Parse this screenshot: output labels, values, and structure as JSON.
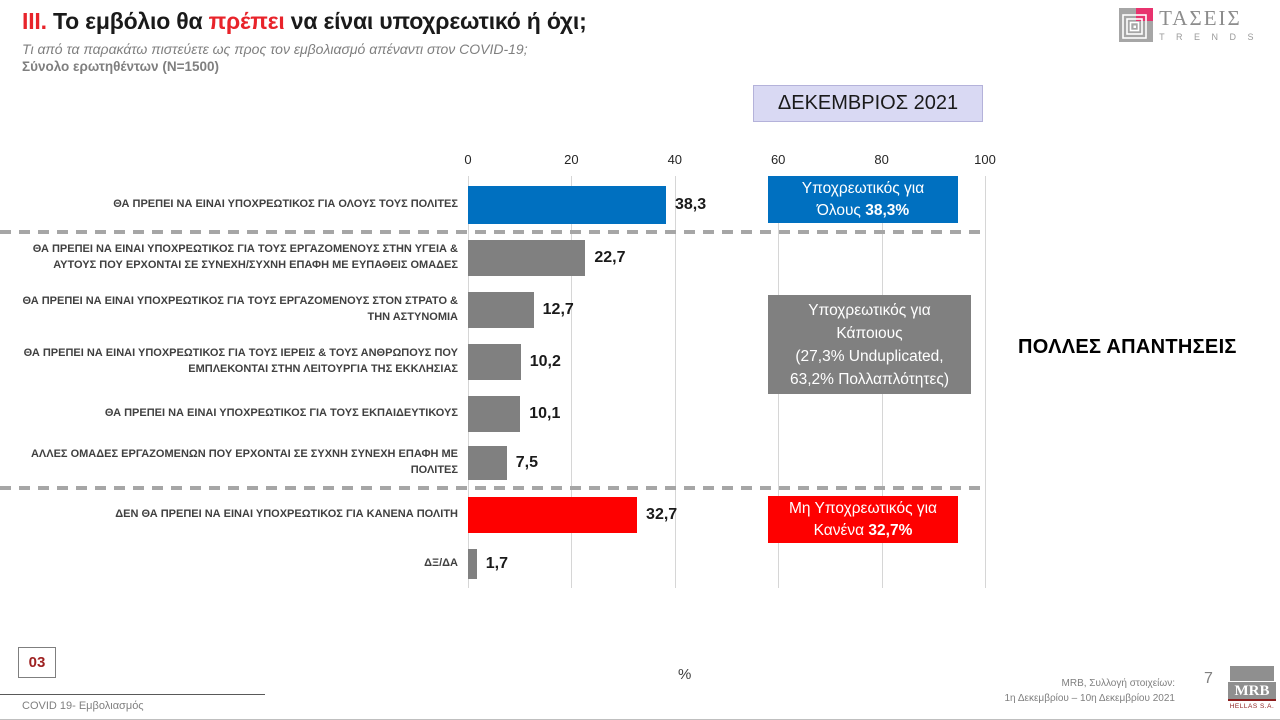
{
  "header": {
    "title_prefix": "III.",
    "title_part1": " Το εμβόλιο θα ",
    "title_highlight": "πρέπει",
    "title_part2": " να είναι υποχρεωτικό ή όχι;",
    "subtitle": "Τι από τα παρακάτω πιστεύετε ως προς τον εμβολιασμό απέναντι στον COVID-19;",
    "sample": "Σύνολο ερωτηθέντων (N=1500)"
  },
  "taseis_logo": {
    "name": "ΤΑΣΕΙΣ",
    "sub": "T R E N D S"
  },
  "period_box": "ΔΕΚΕΜΒΡΙΟΣ 2021",
  "chart_data": {
    "type": "bar",
    "orientation": "horizontal",
    "unit": "%",
    "xlim": [
      0,
      100
    ],
    "x_ticks": [
      0,
      20,
      40,
      60,
      80,
      100
    ],
    "grid": true,
    "categories": [
      "ΘΑ ΠΡΕΠΕΙ ΝΑ ΕΙΝΑΙ ΥΠΟΧΡΕΩΤΙΚΟΣ ΓΙΑ ΟΛΟΥΣ ΤΟΥΣ ΠΟΛΙΤΕΣ",
      "ΘΑ ΠΡΕΠΕΙ ΝΑ ΕΙΝΑΙ ΥΠΟΧΡΕΩΤΙΚΟΣ ΓΙΑ ΤΟΥΣ ΕΡΓΑΖΟΜΕΝΟΥΣ ΣΤΗΝ ΥΓΕΙΑ & ΑΥΤΟΥΣ ΠΟΥ ΕΡΧΟΝΤΑΙ ΣΕ ΣΥΝΕΧΗ/ΣΥΧΝΗ ΕΠΑΦΗ ΜΕ ΕΥΠΑΘΕΙΣ ΟΜΑΔΕΣ",
      "ΘΑ ΠΡΕΠΕΙ ΝΑ ΕΙΝΑΙ ΥΠΟΧΡΕΩΤΙΚΟΣ ΓΙΑ ΤΟΥΣ ΕΡΓΑΖΟΜΕΝΟΥΣ ΣΤΟΝ ΣΤΡΑΤΟ & ΤΗΝ ΑΣΤΥΝΟΜΙΑ",
      "ΘΑ ΠΡΕΠΕΙ ΝΑ ΕΙΝΑΙ ΥΠΟΧΡΕΩΤΙΚΟΣ ΓΙΑ ΤΟΥΣ ΙΕΡΕΙΣ & ΤΟΥΣ ΑΝΘΡΩΠΟΥΣ ΠΟΥ ΕΜΠΛΕΚΟΝΤΑΙ ΣΤΗΝ ΛΕΙΤΟΥΡΓΙΑ ΤΗΣ ΕΚΚΛΗΣΙΑΣ",
      "ΘΑ ΠΡΕΠΕΙ ΝΑ ΕΙΝΑΙ ΥΠΟΧΡΕΩΤΙΚΟΣ ΓΙΑ ΤΟΥΣ ΕΚΠΑΙΔΕΥΤΙΚΟΥΣ",
      "ΑΛΛΕΣ ΟΜΑΔΕΣ ΕΡΓΑΖΟΜΕΝΩΝ ΠΟΥ ΕΡΧΟΝΤΑΙ ΣΕ ΣΥΧΝΗ ΣΥΝΕΧΗ ΕΠΑΦΗ ΜΕ ΠΟΛΙΤΕΣ",
      "ΔΕΝ ΘΑ ΠΡΕΠΕΙ ΝΑ ΕΙΝΑΙ ΥΠΟΧΡΕΩΤΙΚΟΣ ΓΙΑ ΚΑΝΕΝΑ ΠΟΛΙΤΗ",
      "ΔΞ/ΔΑ"
    ],
    "values": [
      38.3,
      22.7,
      12.7,
      10.2,
      10.1,
      7.5,
      32.7,
      1.7
    ],
    "value_labels": [
      "38,3",
      "22,7",
      "12,7",
      "10,2",
      "10,1",
      "7,5",
      "32,7",
      "1,7"
    ],
    "bar_colors": [
      "#0070c0",
      "#808080",
      "#808080",
      "#808080",
      "#808080",
      "#808080",
      "#fe0000",
      "#808080"
    ],
    "group_separators_after_rows": [
      1,
      6
    ]
  },
  "callouts": {
    "blue": {
      "line1": "Υποχρεωτικός για",
      "line2_normal": "Όλους ",
      "line2_bold": "38,3%",
      "color": "#0070c0"
    },
    "gray": {
      "lines": [
        "Υποχρεωτικός για",
        "Κάποιους",
        "(27,3% Unduplicated,",
        "63,2% Πολλαπλότητες)"
      ],
      "color": "#808080"
    },
    "red": {
      "line1": "Μη Υποχρεωτικός για",
      "line2_normal": "Κανένα ",
      "line2_bold": "32,7%",
      "color": "#fe0000"
    }
  },
  "side_note": "ΠΟΛΛΕΣ ΑΠΑΝΤΗΣΕΙΣ",
  "footer": {
    "slide_number": "03",
    "footnote": "COVID 19- Εμβολιασμός",
    "percent_label": "%",
    "source_line1": "MRB, Συλλογή στοιχείων:",
    "source_line2": "1η Δεκεμβρίου –  10η Δεκεμβρίου 2021",
    "page_number": "7",
    "mrb_logo_name": "MRB",
    "mrb_logo_sub": "HELLAS S.A."
  }
}
